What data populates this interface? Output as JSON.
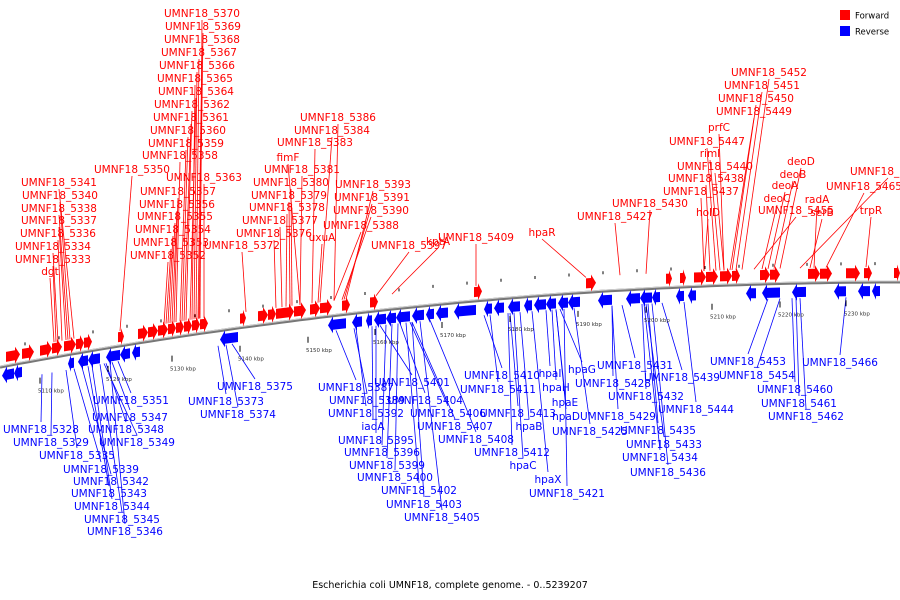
{
  "caption": "Escherichia coli UMNF18, complete genome. - 0..5239207",
  "legend": [
    {
      "label": "Forward",
      "color": "#ff0000"
    },
    {
      "label": "Reverse",
      "color": "#0000ff"
    }
  ],
  "colors": {
    "forward": "#ff0000",
    "reverse": "#0000ff",
    "backbone": "#888888"
  },
  "ticks": [
    "5110 kbp",
    "5120 kbp",
    "5130 kbp",
    "5140 kbp",
    "5150 kbp",
    "5160 kbp",
    "5170 kbp",
    "5180 kbp",
    "5190 kbp",
    "5200 kbp",
    "5210 kbp",
    "5220 kbp",
    "5230 kbp"
  ],
  "forward_labels": [
    "UMNF18_5370",
    "UMNF18_5369",
    "UMNF18_5368",
    "UMNF18_5367",
    "UMNF18_5366",
    "UMNF18_5365",
    "UMNF18_5364",
    "UMNF18_5362",
    "UMNF18_5361",
    "UMNF18_5360",
    "UMNF18_5359",
    "UMNF18_5358",
    "UMNF18_5363",
    "UMNF18_5357",
    "UMNF18_5356",
    "UMNF18_5355",
    "UMNF18_5354",
    "UMNF18_5353",
    "UMNF18_5352",
    "UMNF18_5350",
    "UMNF18_5341",
    "UMNF18_5340",
    "UMNF18_5338",
    "UMNF18_5337",
    "UMNF18_5336",
    "UMNF18_5334",
    "UMNF18_5333",
    "dgt",
    "UMNF18_5386",
    "UMNF18_5384",
    "UMNF18_5383",
    "fimF",
    "UMNF18_5381",
    "UMNF18_5380",
    "UMNF18_5379",
    "UMNF18_5378",
    "UMNF18_5377",
    "UMNF18_5376",
    "UMNF18_5372",
    "UMNF18_5393",
    "UMNF18_5391",
    "UMNF18_5390",
    "UMNF18_5388",
    "uxuA",
    "UMNF18_5397",
    "kptA",
    "UMNF18_5409",
    "hpaR",
    "UMNF18_5427",
    "UMNF18_5430",
    "UMNF18_5452",
    "UMNF18_5451",
    "UMNF18_5450",
    "UMNF18_5449",
    "prfC",
    "UMNF18_5447",
    "rimI",
    "UMNF18_5440",
    "UMNF18_5438",
    "UMNF18_5437",
    "holD",
    "deoD",
    "deoB",
    "UMNF18_5467",
    "deoA",
    "UMNF18_5465",
    "deoC",
    "radA",
    "UMNF18_5455",
    "serB",
    "trpR"
  ],
  "reverse_labels": [
    "UMNF18_5351",
    "UMNF18_5347",
    "UMNF18_5328",
    "UMNF18_5348",
    "UMNF18_5329",
    "UMNF18_5349",
    "UMNF18_5335",
    "UMNF18_5339",
    "UMNF18_5342",
    "UMNF18_5343",
    "UMNF18_5344",
    "UMNF18_5345",
    "UMNF18_5346",
    "UMNF18_5375",
    "UMNF18_5373",
    "UMNF18_5374",
    "UMNF18_5387",
    "UMNF18_5401",
    "UMNF18_5389",
    "UMNF18_5404",
    "UMNF18_5392",
    "UMNF18_5406",
    "iadA",
    "UMNF18_5407",
    "UMNF18_5395",
    "UMNF18_5408",
    "UMNF18_5396",
    "UMNF18_5399",
    "UMNF18_5400",
    "UMNF18_5402",
    "UMNF18_5403",
    "UMNF18_5405",
    "UMNF18_5410",
    "UMNF18_5411",
    "hpaI",
    "hpaH",
    "hpaE",
    "hpaD",
    "hpaG",
    "hpaX",
    "hpaB",
    "hpaC",
    "UMNF18_5413",
    "UMNF18_5412",
    "UMNF18_5421",
    "UMNF18_5425",
    "UMNF18_5428",
    "UMNF18_5429",
    "UMNF18_5431",
    "UMNF18_5432",
    "UMNF18_5433",
    "UMNF18_5434",
    "UMNF18_5435",
    "UMNF18_5436",
    "UMNF18_5439",
    "UMNF18_5444",
    "UMNF18_5453",
    "UMNF18_5454",
    "UMNF18_5460",
    "UMNF18_5461",
    "UMNF18_5462",
    "UMNF18_5466"
  ]
}
